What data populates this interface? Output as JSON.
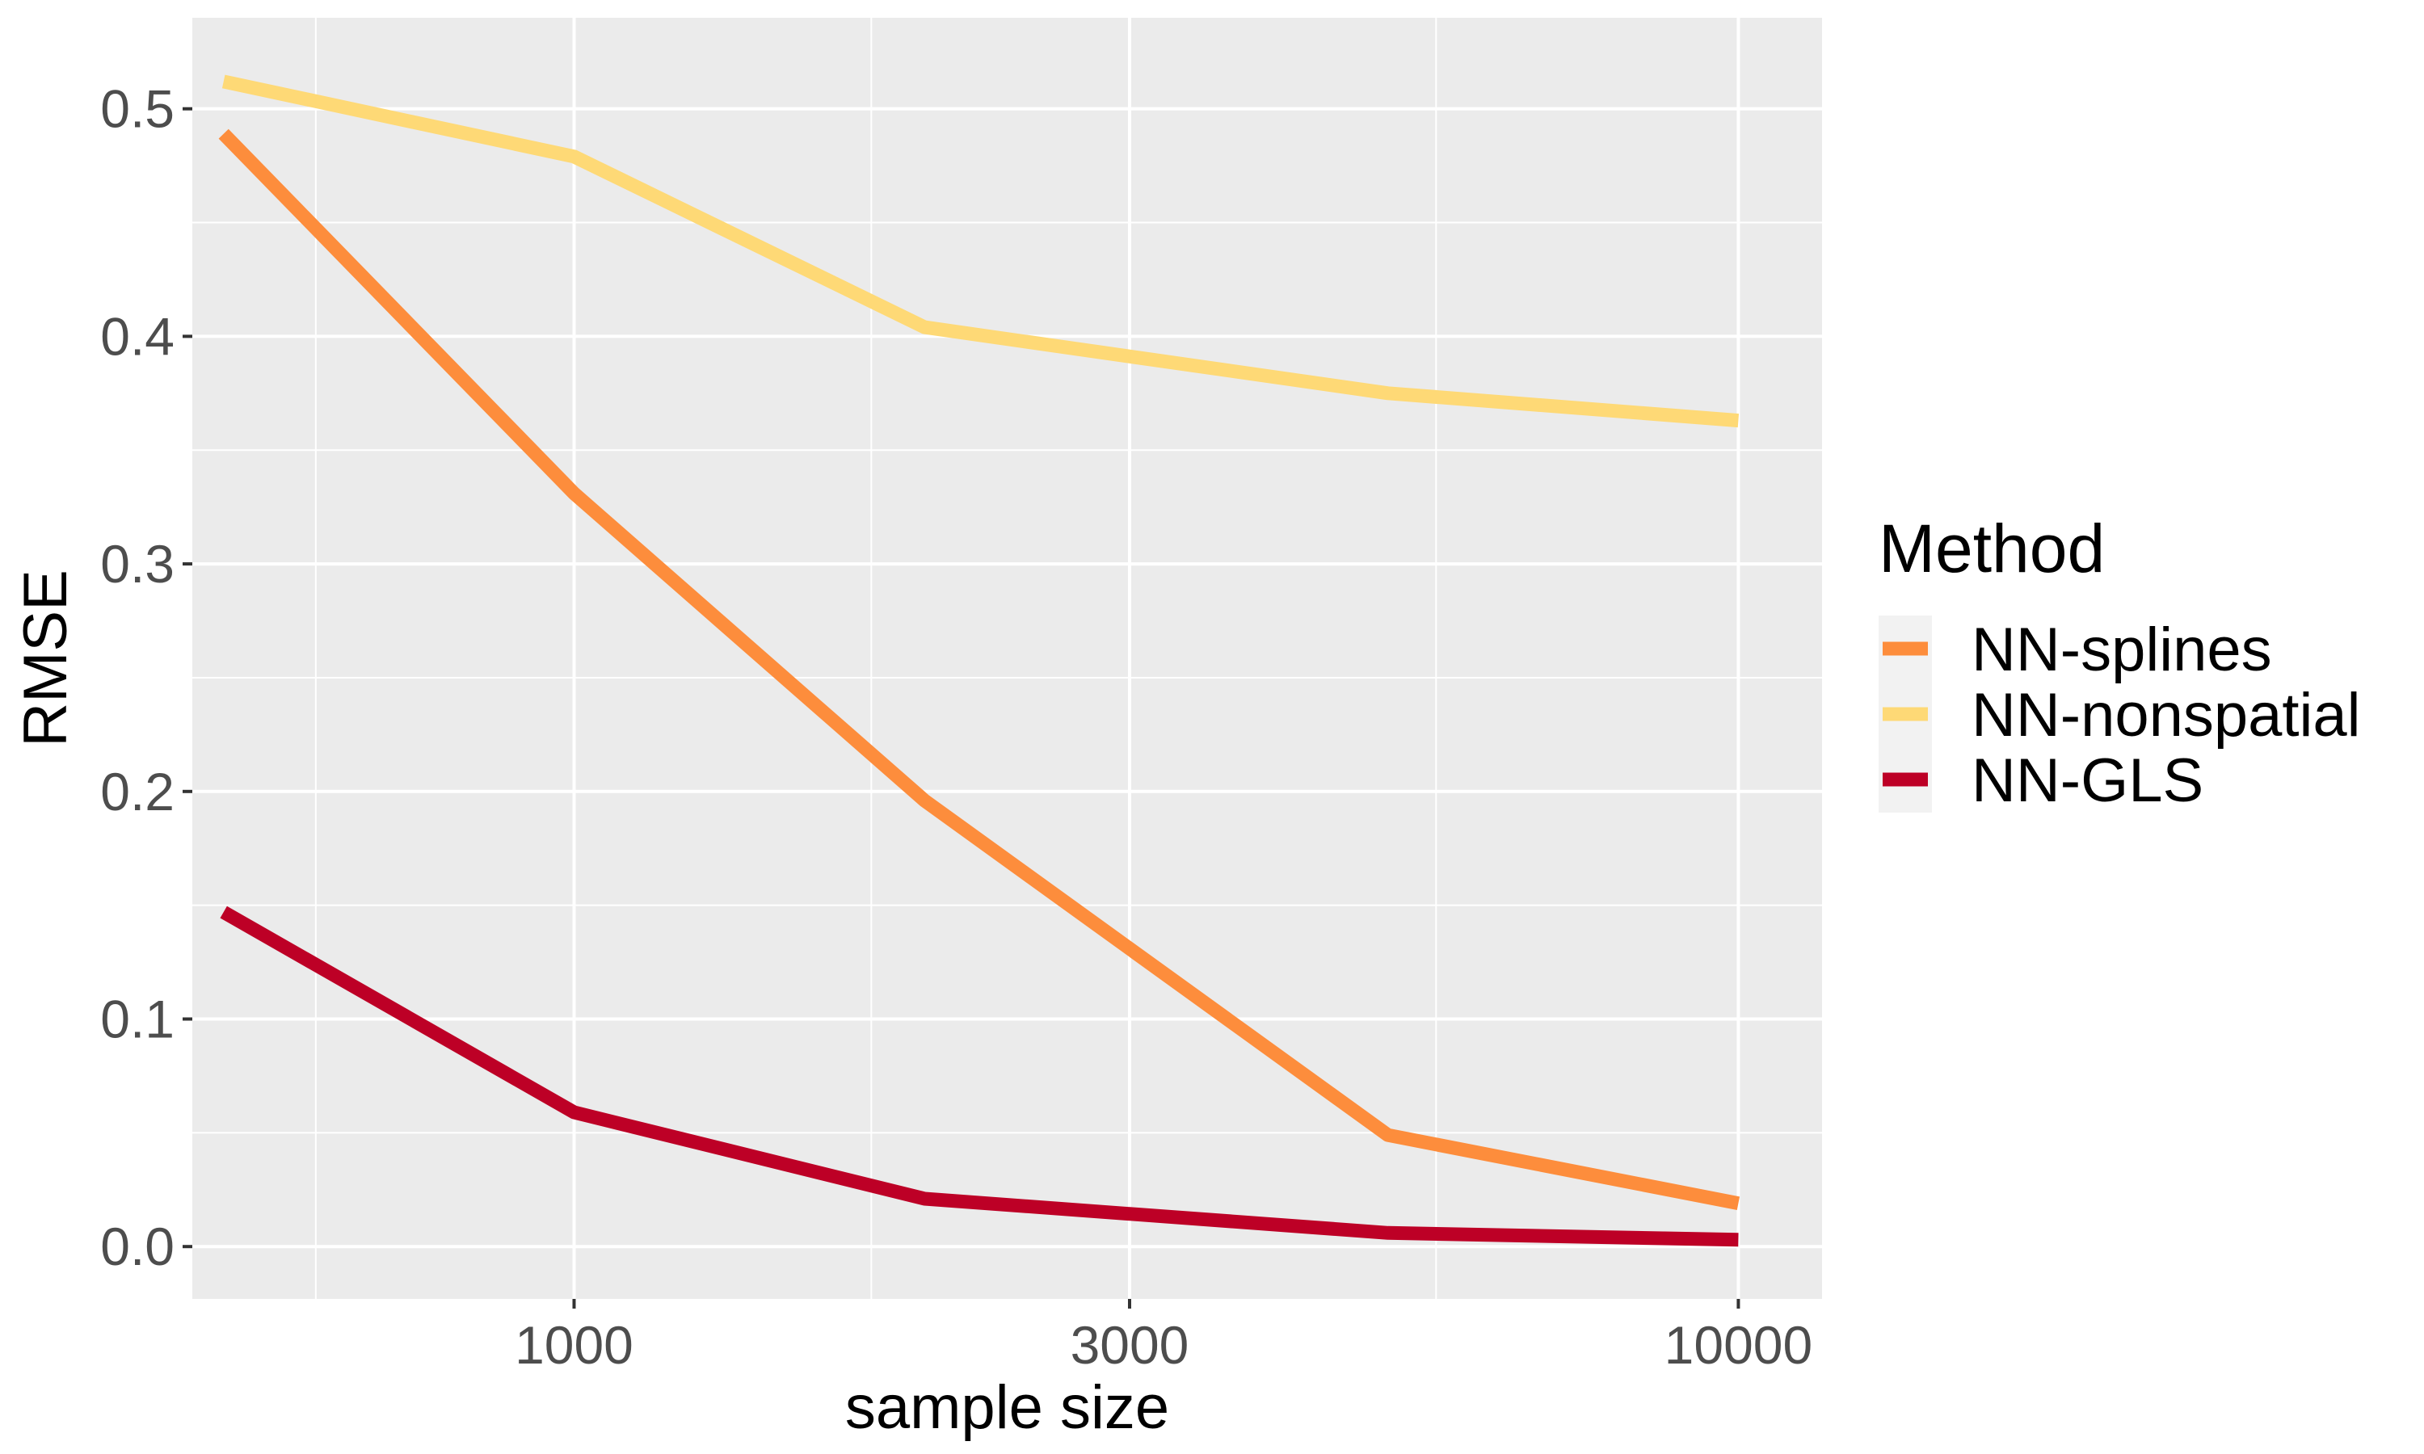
{
  "chart_data": {
    "type": "line",
    "xscale": "log10",
    "xlabel": "sample size",
    "ylabel": "RMSE",
    "xlim": [
      470,
      11800
    ],
    "ylim": [
      -0.023,
      0.54
    ],
    "x_ticks": [
      1000,
      3000,
      10000
    ],
    "x_tick_labels": [
      "1000",
      "3000",
      "10000"
    ],
    "y_ticks": [
      0.0,
      0.1,
      0.2,
      0.3,
      0.4,
      0.5
    ],
    "y_tick_labels": [
      "0.0",
      "0.1",
      "0.2",
      "0.3",
      "0.4",
      "0.5"
    ],
    "x_minor_breaks": [
      600,
      1800,
      5500
    ],
    "y_minor_breaks": [
      0.05,
      0.15,
      0.25,
      0.35,
      0.45
    ],
    "grid": true,
    "panel_background": "#EBEBEB",
    "legend": {
      "title": "Method",
      "position": "right"
    },
    "x": [
      500,
      1000,
      2000,
      5000,
      10000
    ],
    "series": [
      {
        "name": "NN-splines",
        "color": "#FD8D3C",
        "values": [
          0.489,
          0.331,
          0.196,
          0.049,
          0.019
        ]
      },
      {
        "name": "NN-nonspatial",
        "color": "#FED976",
        "values": [
          0.512,
          0.479,
          0.404,
          0.375,
          0.363
        ]
      },
      {
        "name": "NN-GLS",
        "color": "#BD0026",
        "values": [
          0.147,
          0.059,
          0.021,
          0.006,
          0.003
        ]
      }
    ]
  }
}
